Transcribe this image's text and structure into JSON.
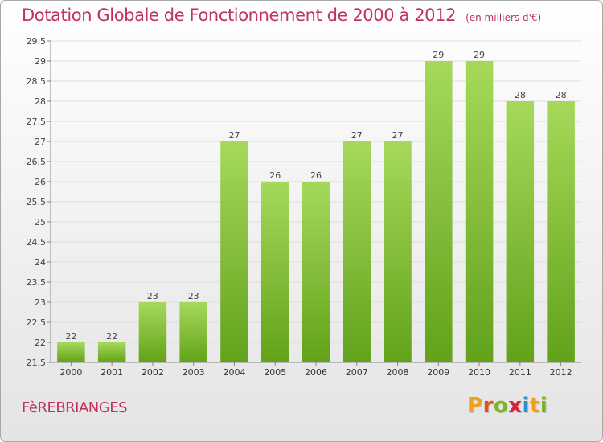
{
  "header": {
    "title": "Dotation Globale de Fonctionnement de 2000 à 2012",
    "unit": "(en milliers d'€)"
  },
  "footer": {
    "commune": "FèREBRIANGES",
    "logo_letters": [
      "P",
      "r",
      "o",
      "x",
      "i",
      "t",
      "i"
    ],
    "logo_colors": [
      "#f0a020",
      "#e84e1b",
      "#7ab51d",
      "#d9213b",
      "#2f8fce",
      "#f0a020",
      "#7ab51d"
    ]
  },
  "colors": {
    "title": "#c0335a",
    "bar_light": "#a6d95a",
    "bar_dark": "#62a21a",
    "grid": "#dddddd"
  },
  "chart_data": {
    "type": "bar",
    "title": "Dotation Globale de Fonctionnement de 2000 à 2012",
    "subtitle": "(en milliers d'€)",
    "xlabel": "",
    "ylabel": "",
    "categories": [
      "2000",
      "2001",
      "2002",
      "2003",
      "2004",
      "2005",
      "2006",
      "2007",
      "2008",
      "2009",
      "2010",
      "2011",
      "2012"
    ],
    "values": [
      22,
      22,
      23,
      23,
      27,
      26,
      26,
      27,
      27,
      29,
      29,
      28,
      28
    ],
    "ylim": [
      21.5,
      29.5
    ],
    "yticks": [
      21.5,
      22,
      22.5,
      23,
      23.5,
      24,
      24.5,
      25,
      25.5,
      26,
      26.5,
      27,
      27.5,
      28,
      28.5,
      29,
      29.5
    ],
    "grid": true,
    "legend": "none"
  }
}
